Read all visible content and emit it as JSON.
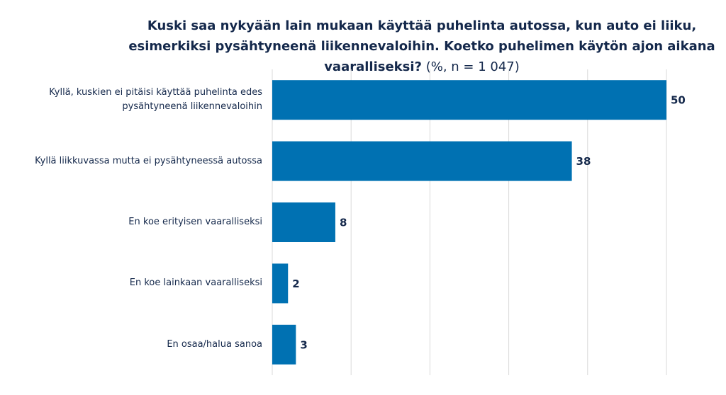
{
  "chart_data": {
    "type": "hbar",
    "title": "Kuski saa nykyään lain mukaan käyttää puhelinta autossa, kun auto ei liiku, esimerkiksi pysähtyneenä liikennevaloihin. Koetko puhelimen käytön ajon aikana vaaralliseksi?",
    "subtitle": "(%, n = 1 047)",
    "categories": [
      "Kyllä, kuskien ei pitäisi käyttää puhelinta edes pysähtyneenä liikennevaloihin",
      "Kyllä liikkuvassa mutta ei pysähtyneessä autossa",
      "En koe erityisen vaaralliseksi",
      "En koe lainkaan vaaralliseksi",
      "En osaa/halua sanoa"
    ],
    "values": [
      50,
      38,
      8,
      2,
      3
    ],
    "color": "#0071b2",
    "xlim": [
      0,
      50
    ],
    "xticks": [
      0,
      10,
      20,
      30,
      40,
      50
    ],
    "grid": true
  }
}
